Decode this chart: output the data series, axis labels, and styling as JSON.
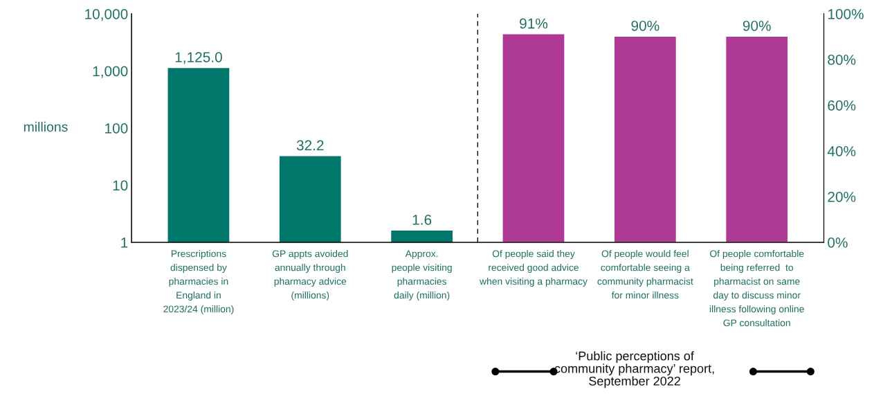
{
  "chart_data": {
    "type": "bar",
    "categories": [
      "Prescriptions\ndispensed by\npharmacies in\nEngland in\n2023/24 (million)",
      "GP appts avoided\nannually through\npharmacy advice\n(millions)",
      "Approx.\npeople visiting\npharmacies\ndaily (million)",
      "Of people said they\nreceived good advice\nwhen visiting a pharmacy",
      "Of people would feel\ncomfortable seeing a\ncommunity pharmacist\nfor minor illness",
      "Of people comfortable\nbeing referred  to\npharmacist on same\nday to discuss minor\nillness following online\nGP consultation"
    ],
    "series": [
      {
        "color": "#00776b",
        "values": [
          1125.0,
          32.2,
          1.6,
          null,
          null,
          null
        ],
        "value_labels": [
          "1,125.0",
          "32.2",
          "1.6",
          null,
          null,
          null
        ]
      },
      {
        "color": "#ae3a95",
        "axis": "y2",
        "values": [
          null,
          null,
          null,
          91,
          90,
          90
        ],
        "value_labels": [
          null,
          null,
          null,
          "91%",
          "90%",
          "90%"
        ]
      }
    ],
    "log": "y",
    "ylabel": "millions",
    "ylim": [
      1,
      10000
    ],
    "yticks": [
      {
        "value": 1,
        "label": "1"
      },
      {
        "value": 10,
        "label": "10"
      },
      {
        "value": 100,
        "label": "100"
      },
      {
        "value": 1000,
        "label": "1,000"
      },
      {
        "value": 10000,
        "label": "10,000"
      }
    ],
    "y2lim": [
      0,
      100
    ],
    "y2ticks": [
      {
        "value": 0,
        "label": "0%"
      },
      {
        "value": 20,
        "label": "20%"
      },
      {
        "value": 40,
        "label": "40%"
      },
      {
        "value": 60,
        "label": "60%"
      },
      {
        "value": 80,
        "label": "80%"
      },
      {
        "value": 100,
        "label": "100%"
      }
    ],
    "annotations": [
      "‘Public perceptions of\ncommunity pharmacy’ report,\nSeptember 2022"
    ],
    "grid": false,
    "legend": false
  }
}
